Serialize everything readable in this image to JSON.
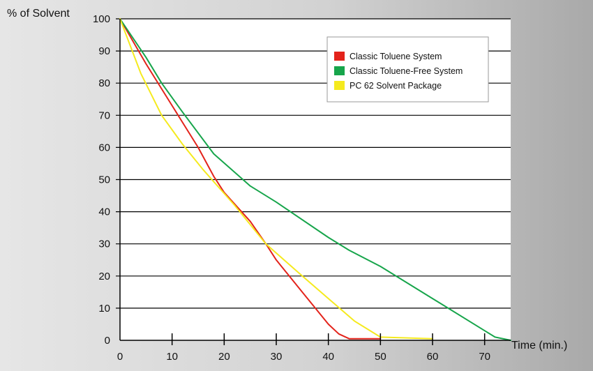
{
  "chart_data": {
    "type": "line",
    "title": "",
    "xlabel": "Time (min.)",
    "ylabel": "% of Solvent",
    "xlim": [
      0,
      75
    ],
    "ylim": [
      0,
      100
    ],
    "x_ticks": [
      0,
      10,
      20,
      30,
      40,
      50,
      60,
      70
    ],
    "y_ticks": [
      0,
      10,
      20,
      30,
      40,
      50,
      60,
      70,
      80,
      90,
      100
    ],
    "grid": "horizontal",
    "legend_position": "top-right",
    "series": [
      {
        "name": "Classic Toluene System",
        "color": "#e3231b",
        "points": [
          [
            0,
            100
          ],
          [
            5,
            86
          ],
          [
            10,
            73
          ],
          [
            15,
            60
          ],
          [
            18,
            51
          ],
          [
            20,
            46
          ],
          [
            25,
            37
          ],
          [
            28,
            30
          ],
          [
            30,
            25
          ],
          [
            35,
            15
          ],
          [
            40,
            5
          ],
          [
            42,
            2
          ],
          [
            44,
            0.5
          ],
          [
            45,
            0.5
          ],
          [
            50,
            0.5
          ]
        ]
      },
      {
        "name": "Classic Toluene-Free System",
        "color": "#17a54b",
        "points": [
          [
            0,
            100
          ],
          [
            5,
            88
          ],
          [
            8,
            80
          ],
          [
            12,
            71
          ],
          [
            18,
            58
          ],
          [
            25,
            48
          ],
          [
            30,
            43
          ],
          [
            40,
            32
          ],
          [
            44,
            28
          ],
          [
            50,
            23
          ],
          [
            60,
            13
          ],
          [
            70,
            3
          ],
          [
            72,
            1
          ],
          [
            75,
            0
          ]
        ]
      },
      {
        "name": "PC 62 Solvent Package",
        "color": "#f5ea1e",
        "points": [
          [
            0,
            100
          ],
          [
            4,
            83
          ],
          [
            8,
            70
          ],
          [
            12,
            61
          ],
          [
            16,
            53
          ],
          [
            22,
            42
          ],
          [
            28,
            30
          ],
          [
            35,
            20
          ],
          [
            40,
            13
          ],
          [
            45,
            6
          ],
          [
            50,
            1
          ],
          [
            60,
            0.5
          ]
        ]
      }
    ]
  }
}
